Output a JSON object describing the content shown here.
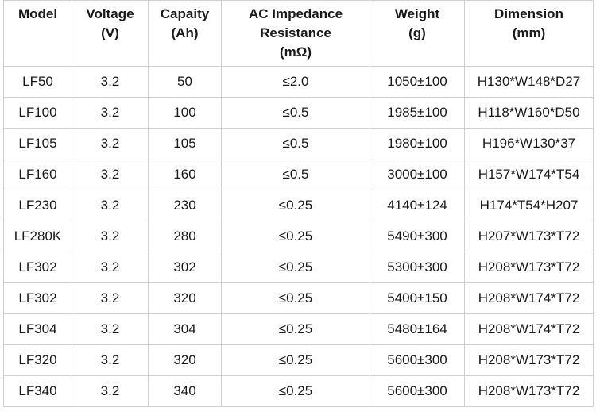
{
  "table": {
    "headers": [
      [
        "Model"
      ],
      [
        "Voltage",
        "(V)"
      ],
      [
        "Capaity",
        "(Ah)"
      ],
      [
        "AC Impedance",
        "Resistance",
        "(mΩ)"
      ],
      [
        "Weight",
        "(g)"
      ],
      [
        "Dimension",
        "(mm)"
      ]
    ],
    "rows": [
      [
        "LF50",
        "3.2",
        "50",
        "≤2.0",
        "1050±100",
        "H130*W148*D27"
      ],
      [
        "LF100",
        "3.2",
        "100",
        "≤0.5",
        "1985±100",
        "H118*W160*D50"
      ],
      [
        "LF105",
        "3.2",
        "105",
        "≤0.5",
        "1980±100",
        "H196*W130*37"
      ],
      [
        "LF160",
        "3.2",
        "160",
        "≤0.5",
        "3000±100",
        "H157*W174*T54"
      ],
      [
        "LF230",
        "3.2",
        "230",
        "≤0.25",
        "4140±124",
        "H174*T54*H207"
      ],
      [
        "LF280K",
        "3.2",
        "280",
        "≤0.25",
        "5490±300",
        "H207*W173*T72"
      ],
      [
        "LF302",
        "3.2",
        "302",
        "≤0.25",
        "5300±300",
        "H208*W173*T72"
      ],
      [
        "LF302",
        "3.2",
        "320",
        "≤0.25",
        "5400±150",
        "H208*W174*T72"
      ],
      [
        "LF304",
        "3.2",
        "304",
        "≤0.25",
        "5480±164",
        "H208*W174*T72"
      ],
      [
        "LF320",
        "3.2",
        "320",
        "≤0.25",
        "5600±300",
        "H208*W173*T72"
      ],
      [
        "LF340",
        "3.2",
        "340",
        "≤0.25",
        "5600±300",
        "H208*W173*T72"
      ]
    ]
  }
}
